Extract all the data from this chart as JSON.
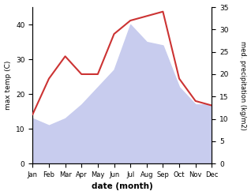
{
  "months": [
    "Jan",
    "Feb",
    "Mar",
    "Apr",
    "May",
    "Jun",
    "Jul",
    "Aug",
    "Sep",
    "Oct",
    "Nov",
    "Dec"
  ],
  "temp": [
    13,
    11,
    13,
    17,
    22,
    27,
    40,
    35,
    34,
    22,
    17,
    17
  ],
  "precip": [
    11,
    19,
    24,
    20,
    20,
    29,
    32,
    33,
    34,
    19,
    14,
    13
  ],
  "temp_fill_color": "#c8ccee",
  "precip_color": "#cc3333",
  "left_label": "max temp (C)",
  "right_label": "med. precipitation (kg/m2)",
  "xlabel": "date (month)",
  "ylim_left": [
    0,
    45
  ],
  "ylim_right": [
    0,
    35
  ],
  "yticks_left": [
    0,
    10,
    20,
    30,
    40
  ],
  "yticks_right": [
    0,
    5,
    10,
    15,
    20,
    25,
    30,
    35
  ],
  "background_color": "#ffffff",
  "figwidth": 3.18,
  "figheight": 2.47,
  "dpi": 100
}
